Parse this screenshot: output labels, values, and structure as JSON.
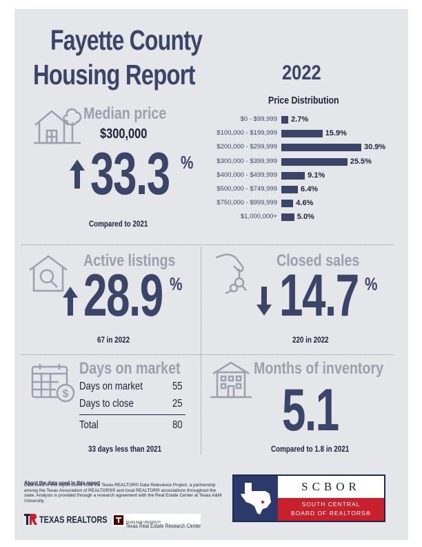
{
  "header": {
    "title_line1": "Fayette County",
    "title_line2": "Housing Report",
    "year": "2022"
  },
  "median": {
    "label": "Median price",
    "price": "$300,000",
    "change": "33.3",
    "percent_sign": "%",
    "direction": "up",
    "note": "Compared to 2021"
  },
  "distribution": {
    "title": "Price Distribution",
    "items": [
      {
        "range": "$0 - $99,999",
        "pct": "2.7%",
        "value": 2.7
      },
      {
        "range": "$100,000 - $199,999",
        "pct": "15.9%",
        "value": 15.9
      },
      {
        "range": "$200,000 - $299,999",
        "pct": "30.9%",
        "value": 30.9
      },
      {
        "range": "$300,000 - $399,999",
        "pct": "25.5%",
        "value": 25.5
      },
      {
        "range": "$400,000 - $499,999",
        "pct": "9.1%",
        "value": 9.1
      },
      {
        "range": "$500,000 - $749,999",
        "pct": "6.4%",
        "value": 6.4
      },
      {
        "range": "$750,000 - $999,999",
        "pct": "4.6%",
        "value": 4.6
      },
      {
        "range": "$1,000,000+",
        "pct": "5.0%",
        "value": 5.0
      }
    ]
  },
  "active": {
    "label": "Active listings",
    "change": "28.9",
    "percent_sign": "%",
    "direction": "up",
    "note": "67 in 2022"
  },
  "closed": {
    "label": "Closed sales",
    "change": "14.7",
    "percent_sign": "%",
    "direction": "down",
    "note": "220 in 2022"
  },
  "days": {
    "label": "Days on market",
    "rows": [
      {
        "name": "Days on market",
        "value": "55"
      },
      {
        "name": "Days to close",
        "value": "25"
      }
    ],
    "total_label": "Total",
    "total_value": "80",
    "note": "33 days less than 2021"
  },
  "inventory": {
    "label": "Months of inventory",
    "value": "5.1",
    "note": "Compared to 1.8 in 2021"
  },
  "about": {
    "heading": "About the data used in this report",
    "body": "Data used in this report come from the Texas REALTOR® Data Relevance Project, a partnership among the Texas Association of REALTORS® and local REALTOR® associations throughout the state. Analysis is provided through a research agreement with the Real Estate Center at Texas A&M University."
  },
  "logos": {
    "texas_realtors": "TEXAS REALTORS",
    "tamu_small": "TEXAS A&M UNIVERSITY",
    "tamu_center": "Texas Real Estate Research Center"
  },
  "scbor": {
    "name": "SCBOR",
    "line1": "SOUTH CENTRAL",
    "line2": "BOARD OF REALTORS®"
  },
  "colors": {
    "navy": "#3a4568",
    "grey": "#9aa0ad",
    "background": "#e4e6ea",
    "scbor_blue": "#2c3a6b",
    "scbor_red": "#c8202c"
  }
}
